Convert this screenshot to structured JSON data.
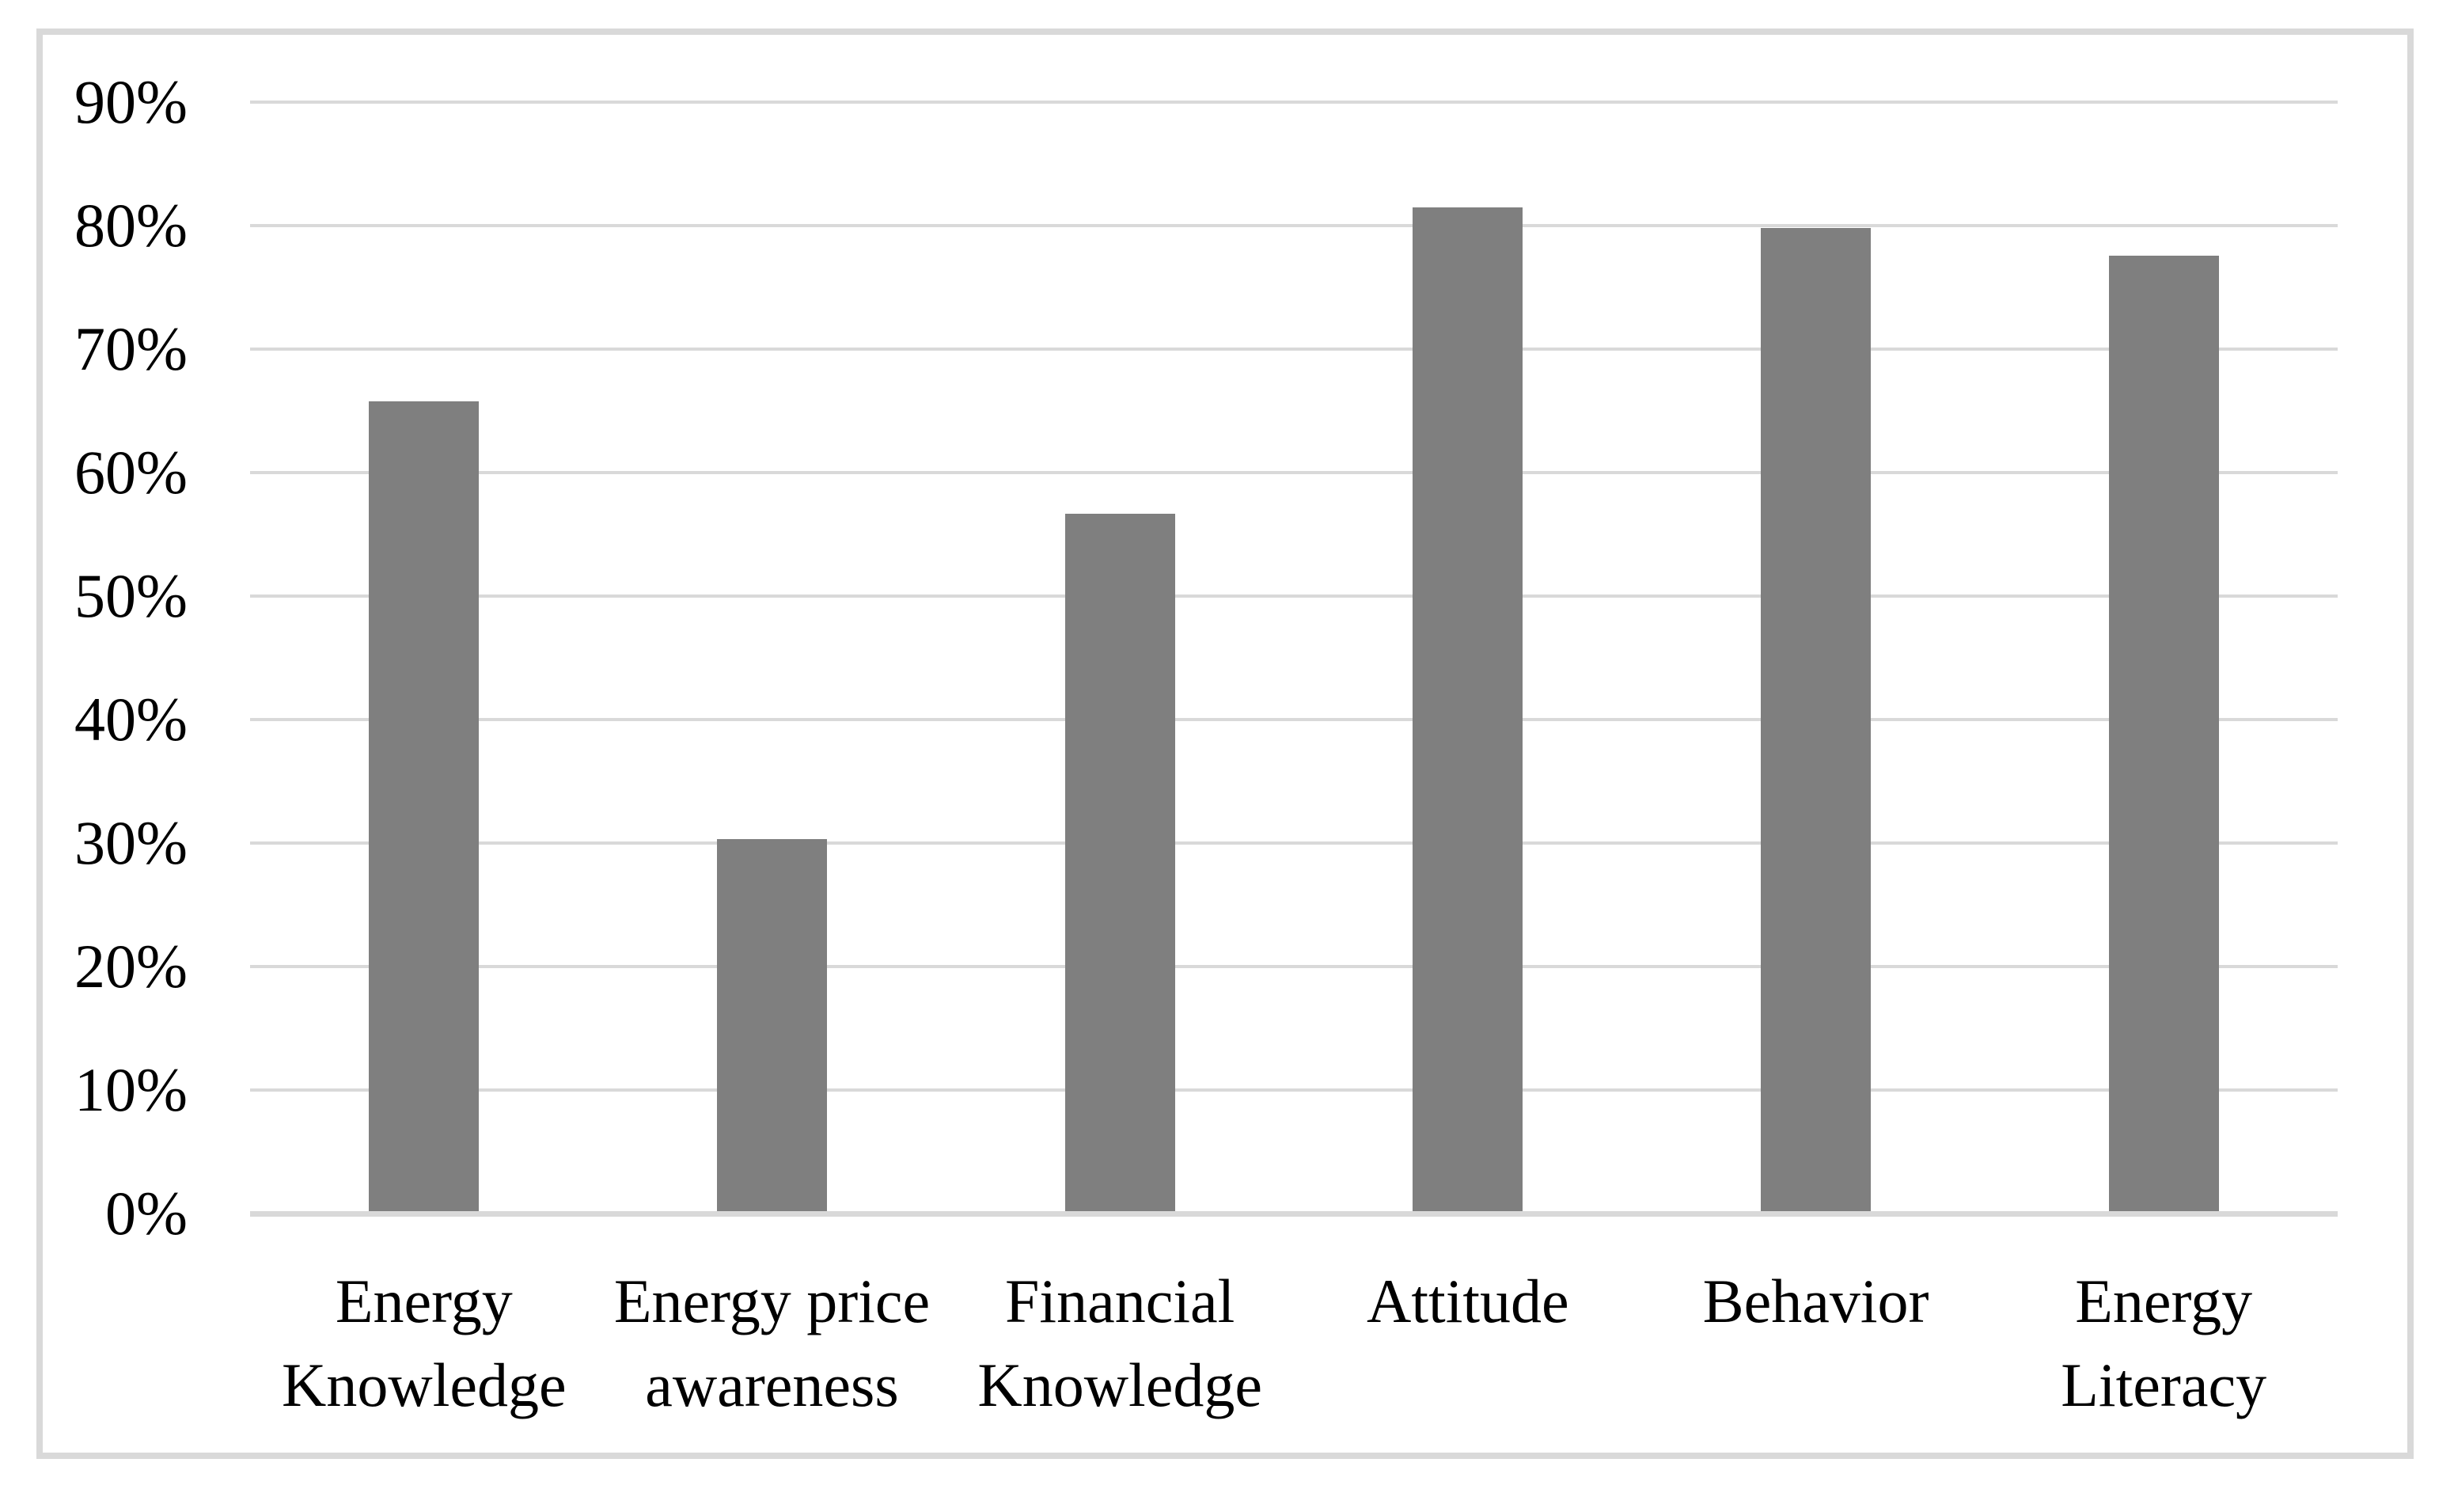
{
  "figure": {
    "background_color": "#FFFFFF",
    "frame_border_color": "#D9D9D9",
    "text_color": "#000000"
  },
  "chart_data": {
    "type": "bar",
    "title": "",
    "xlabel": "",
    "ylabel": "",
    "categories": [
      "Energy\nKnowledge",
      "Energy price\nawareness",
      "Financial\nKnowledge",
      "Attitude",
      "Behavior",
      "Energy\nLiteracy"
    ],
    "values": [
      65.6,
      30.1,
      56.5,
      81.3,
      79.6,
      77.4
    ],
    "value_unit": "%",
    "ylim": [
      0,
      90
    ],
    "ytick_step": 10,
    "ytick_labels": [
      "0%",
      "10%",
      "20%",
      "30%",
      "40%",
      "50%",
      "60%",
      "70%",
      "80%",
      "90%"
    ],
    "grid": "horizontal",
    "legend_position": "none",
    "bar_color": "#7F7F7F",
    "gridline_color": "#D9D9D9",
    "axis_line_color": "#D9D9D9"
  }
}
